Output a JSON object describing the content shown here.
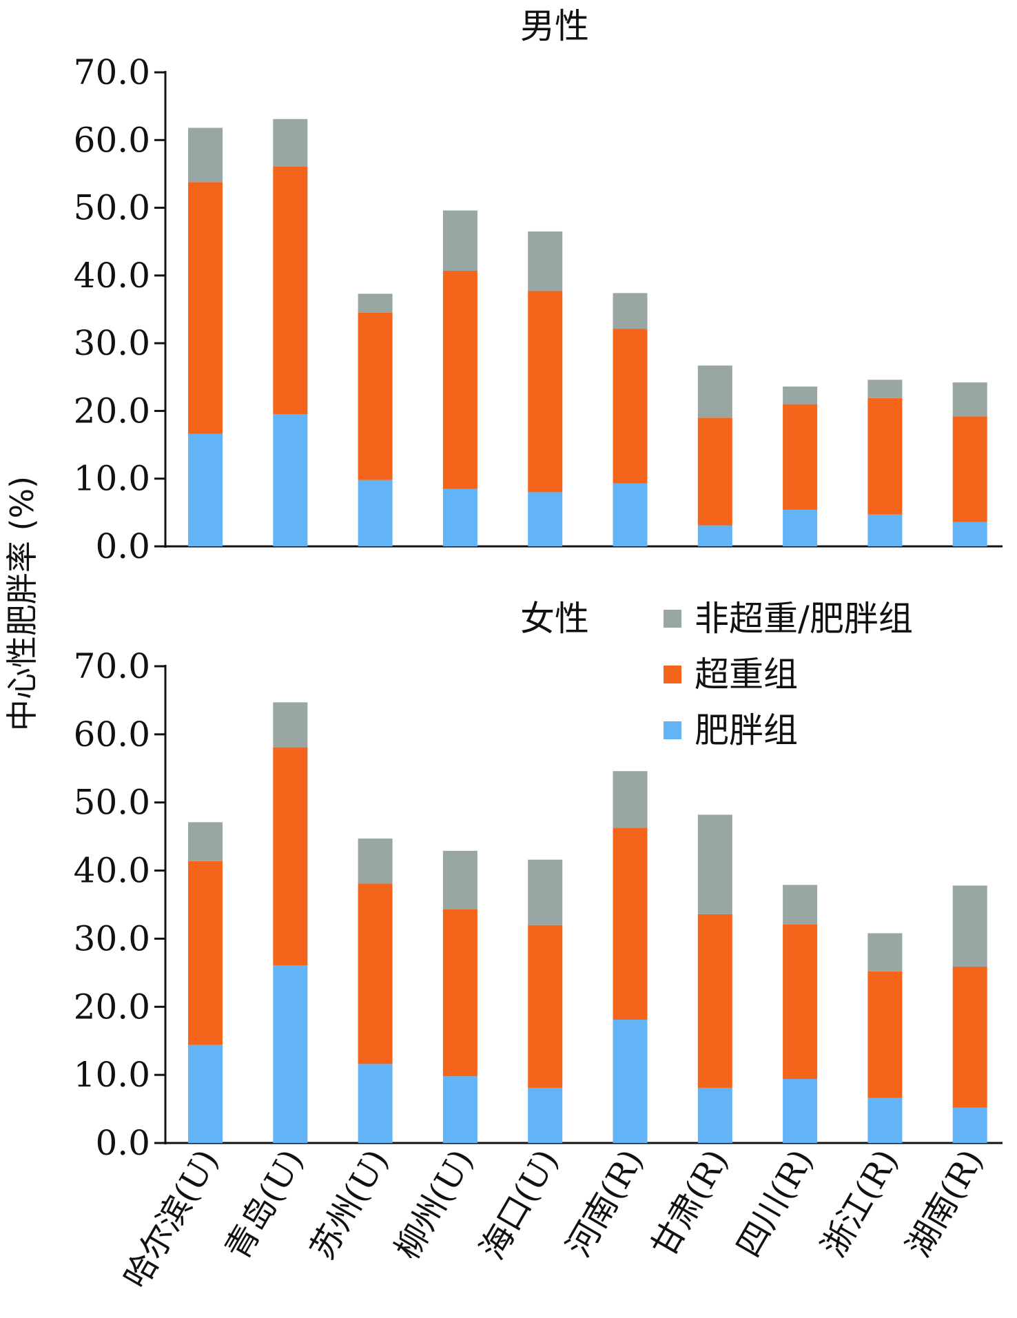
{
  "chart_data": [
    {
      "type": "bar",
      "stacked": true,
      "title": "男性",
      "ylabel": "中心性肥胖率 (%)",
      "ylim": [
        0,
        70
      ],
      "yticks": [
        "0.0",
        "10.0",
        "20.0",
        "30.0",
        "40.0",
        "50.0",
        "60.0",
        "70.0"
      ],
      "categories": [
        "哈尔滨(U)",
        "青岛(U)",
        "苏州(U)",
        "柳州(U)",
        "海口(U)",
        "河南(R)",
        "甘肃(R)",
        "四川(R)",
        "浙江(R)",
        "湖南(R)"
      ],
      "series": [
        {
          "name": "肥胖组",
          "color": "#62B4F7",
          "values": [
            16.6,
            19.5,
            9.8,
            8.5,
            8.0,
            9.3,
            3.1,
            5.4,
            4.7,
            3.6
          ]
        },
        {
          "name": "超重组",
          "color": "#F4651B",
          "values": [
            37.2,
            36.6,
            24.7,
            32.2,
            29.7,
            22.8,
            15.9,
            15.6,
            17.2,
            15.6
          ]
        },
        {
          "name": "非超重/肥胖组",
          "color": "#98A6A4",
          "values": [
            8.0,
            7.0,
            2.8,
            8.9,
            8.8,
            5.3,
            7.7,
            2.6,
            2.7,
            5.0
          ]
        }
      ]
    },
    {
      "type": "bar",
      "stacked": true,
      "title": "女性",
      "ylabel": "中心性肥胖率 (%)",
      "ylim": [
        0,
        70
      ],
      "yticks": [
        "0.0",
        "10.0",
        "20.0",
        "30.0",
        "40.0",
        "50.0",
        "60.0",
        "70.0"
      ],
      "categories": [
        "哈尔滨(U)",
        "青岛(U)",
        "苏州(U)",
        "柳州(U)",
        "海口(U)",
        "河南(R)",
        "甘肃(R)",
        "四川(R)",
        "浙江(R)",
        "湖南(R)"
      ],
      "series": [
        {
          "name": "肥胖组",
          "color": "#62B4F7",
          "values": [
            14.4,
            26.1,
            11.6,
            9.8,
            8.1,
            18.1,
            8.1,
            9.4,
            6.6,
            5.2
          ]
        },
        {
          "name": "超重组",
          "color": "#F4651B",
          "values": [
            27.0,
            32.0,
            26.5,
            24.5,
            23.9,
            28.2,
            25.5,
            22.7,
            18.6,
            20.7
          ]
        },
        {
          "name": "非超重/肥胖组",
          "color": "#98A6A4",
          "values": [
            5.7,
            6.6,
            6.6,
            8.6,
            9.6,
            8.3,
            14.6,
            5.8,
            5.6,
            11.9
          ]
        }
      ]
    }
  ],
  "legend": {
    "items": [
      {
        "label": "非超重/肥胖组",
        "color": "#98A6A4"
      },
      {
        "label": "超重组",
        "color": "#F4651B"
      },
      {
        "label": "肥胖组",
        "color": "#62B4F7"
      }
    ]
  }
}
